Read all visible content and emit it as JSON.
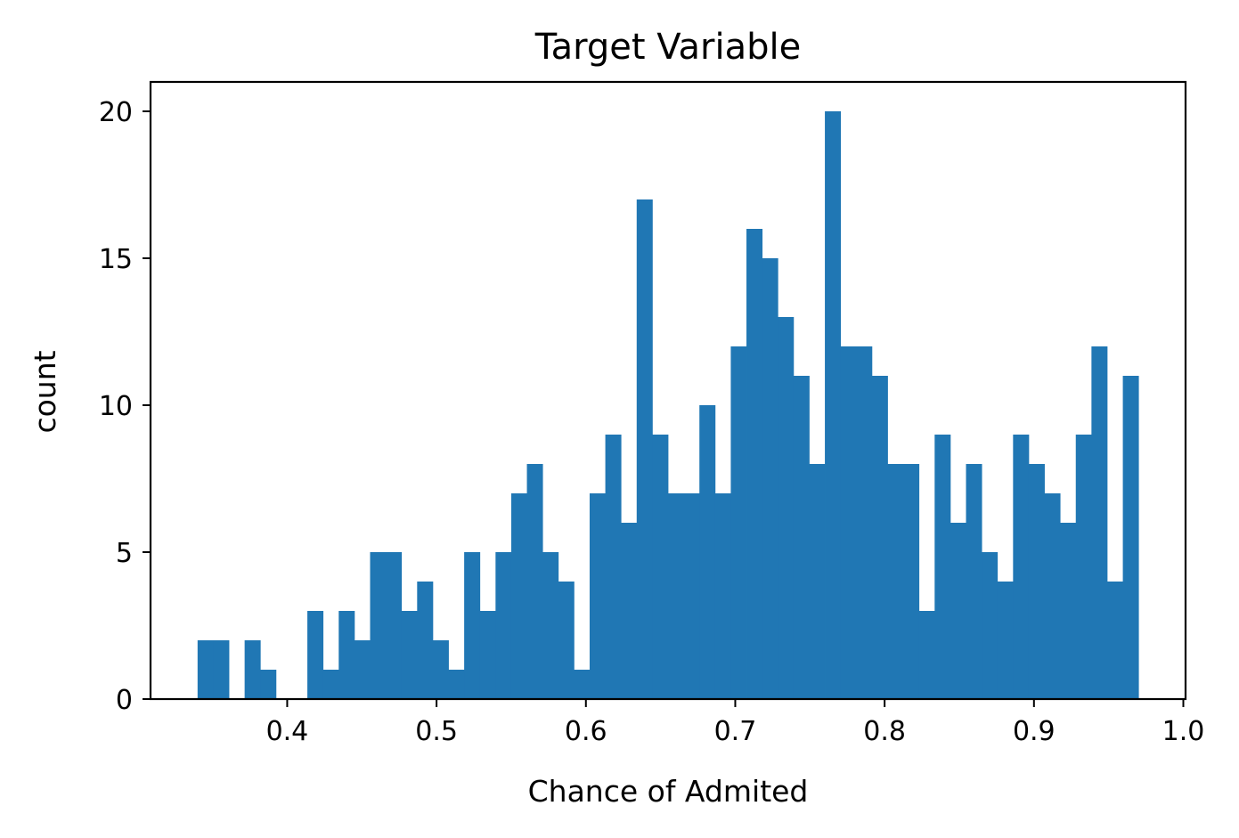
{
  "chart_data": {
    "type": "bar",
    "title": "Target Variable",
    "xlabel": "Chance of Admited",
    "ylabel": "count",
    "xlim": [
      0.3085,
      1.0015
    ],
    "ylim": [
      0,
      21
    ],
    "bin_start": 0.34,
    "bin_width": 0.0105,
    "counts": [
      2,
      2,
      0,
      2,
      1,
      0,
      0,
      3,
      1,
      3,
      2,
      5,
      5,
      3,
      4,
      2,
      1,
      5,
      3,
      5,
      7,
      8,
      5,
      4,
      1,
      7,
      9,
      6,
      17,
      9,
      7,
      7,
      10,
      7,
      12,
      16,
      15,
      13,
      11,
      8,
      20,
      12,
      12,
      11,
      8,
      8,
      3,
      9,
      6,
      8,
      5,
      4,
      9,
      8,
      7,
      6,
      9,
      12,
      4,
      11
    ],
    "xticks": [
      0.4,
      0.5,
      0.6,
      0.7,
      0.8,
      0.9,
      1.0
    ],
    "xtick_labels": [
      "0.4",
      "0.5",
      "0.6",
      "0.7",
      "0.8",
      "0.9",
      "1.0"
    ],
    "yticks": [
      0,
      5,
      10,
      15,
      20
    ],
    "ytick_labels": [
      "0",
      "5",
      "10",
      "15",
      "20"
    ],
    "grid": false,
    "bar_color": "#2077b4"
  }
}
